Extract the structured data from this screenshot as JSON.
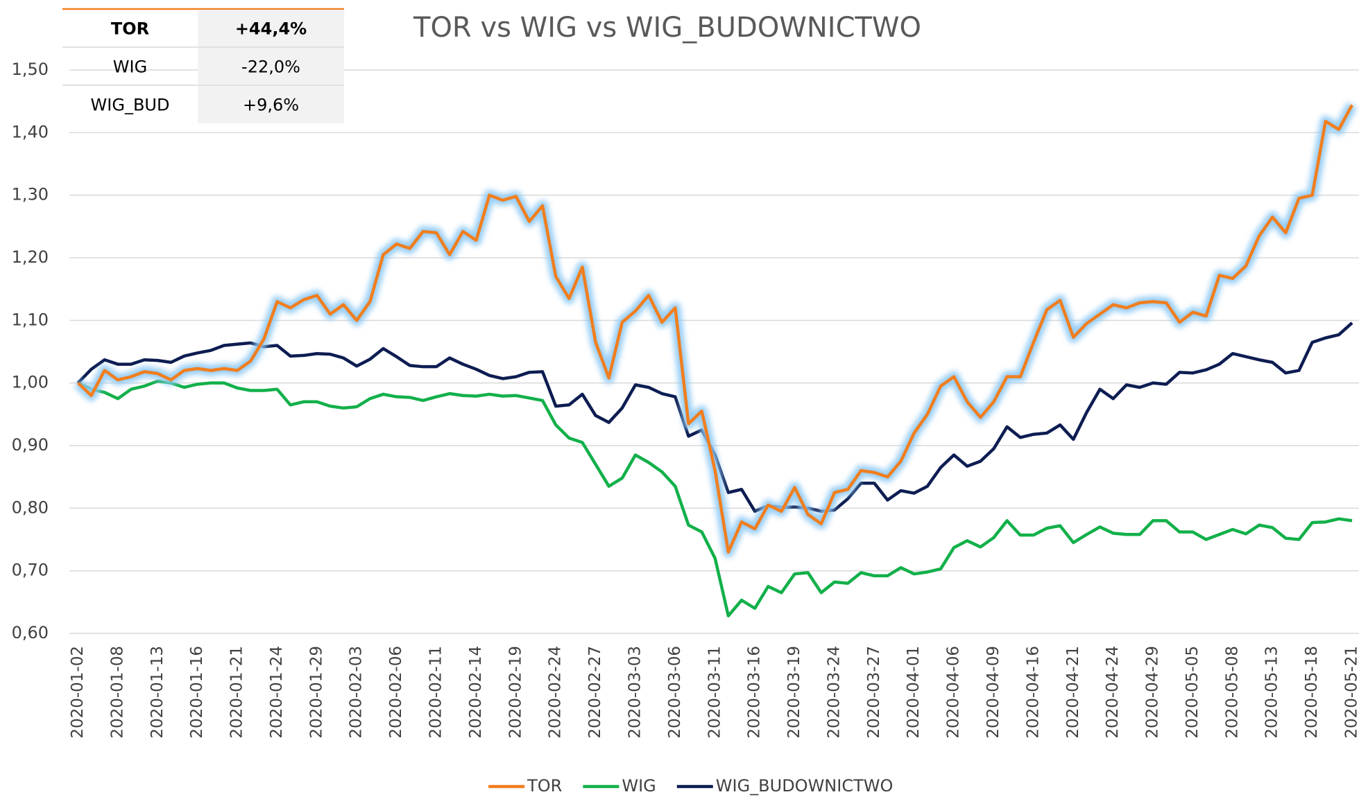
{
  "chart_data": {
    "type": "line",
    "title": "TOR vs WIG vs WIG_BUDOWNICTWO",
    "categories": [
      "2020-01-02",
      null,
      null,
      "2020-01-08",
      null,
      null,
      "2020-01-13",
      null,
      null,
      "2020-01-16",
      null,
      null,
      "2020-01-21",
      null,
      null,
      "2020-01-24",
      null,
      null,
      "2020-01-29",
      null,
      null,
      "2020-02-03",
      null,
      null,
      "2020-02-06",
      null,
      null,
      "2020-02-11",
      null,
      null,
      "2020-02-14",
      null,
      null,
      "2020-02-19",
      null,
      null,
      "2020-02-24",
      null,
      null,
      "2020-02-27",
      null,
      null,
      "2020-03-03",
      null,
      null,
      "2020-03-06",
      null,
      null,
      "2020-03-11",
      null,
      null,
      "2020-03-16",
      null,
      null,
      "2020-03-19",
      null,
      null,
      "2020-03-24",
      null,
      null,
      "2020-03-27",
      null,
      null,
      "2020-04-01",
      null,
      null,
      "2020-04-06",
      null,
      null,
      "2020-04-09",
      null,
      null,
      "2020-04-16",
      null,
      null,
      "2020-04-21",
      null,
      null,
      "2020-04-24",
      null,
      null,
      "2020-04-29",
      null,
      null,
      "2020-05-05",
      null,
      null,
      "2020-05-08",
      null,
      null,
      "2020-05-13",
      null,
      null,
      "2020-05-18",
      null,
      null,
      "2020-05-21"
    ],
    "series": [
      {
        "name": "TOR",
        "color": "#f07e1e",
        "glow": true,
        "values": [
          1.0,
          0.98,
          1.02,
          1.005,
          1.01,
          1.018,
          1.015,
          1.005,
          1.02,
          1.023,
          1.02,
          1.023,
          1.02,
          1.035,
          1.07,
          1.13,
          1.12,
          1.133,
          1.14,
          1.11,
          1.125,
          1.1,
          1.13,
          1.205,
          1.222,
          1.215,
          1.242,
          1.24,
          1.205,
          1.242,
          1.228,
          1.3,
          1.292,
          1.298,
          1.258,
          1.283,
          1.17,
          1.135,
          1.185,
          1.065,
          1.008,
          1.097,
          1.115,
          1.14,
          1.097,
          1.12,
          0.935,
          0.955,
          0.86,
          0.73,
          0.778,
          0.767,
          0.805,
          0.795,
          0.833,
          0.79,
          0.775,
          0.825,
          0.83,
          0.86,
          0.857,
          0.85,
          0.875,
          0.92,
          0.95,
          0.995,
          1.01,
          0.97,
          0.945,
          0.97,
          1.01,
          1.01,
          1.065,
          1.117,
          1.132,
          1.073,
          1.095,
          1.11,
          1.125,
          1.12,
          1.128,
          1.13,
          1.128,
          1.097,
          1.113,
          1.107,
          1.172,
          1.167,
          1.187,
          1.235,
          1.265,
          1.24,
          1.295,
          1.3,
          1.418,
          1.405,
          1.444
        ]
      },
      {
        "name": "WIG",
        "color": "#12b04a",
        "values": [
          1.0,
          0.99,
          0.985,
          0.975,
          0.99,
          0.995,
          1.003,
          1.0,
          0.993,
          0.998,
          1.0,
          1.0,
          0.992,
          0.988,
          0.988,
          0.99,
          0.965,
          0.97,
          0.97,
          0.963,
          0.96,
          0.962,
          0.975,
          0.982,
          0.978,
          0.977,
          0.972,
          0.978,
          0.983,
          0.98,
          0.979,
          0.982,
          0.979,
          0.98,
          0.976,
          0.972,
          0.933,
          0.912,
          0.905,
          0.87,
          0.835,
          0.848,
          0.885,
          0.873,
          0.858,
          0.835,
          0.773,
          0.762,
          0.72,
          0.628,
          0.653,
          0.64,
          0.675,
          0.665,
          0.695,
          0.697,
          0.665,
          0.682,
          0.68,
          0.697,
          0.692,
          0.692,
          0.705,
          0.695,
          0.698,
          0.703,
          0.737,
          0.748,
          0.738,
          0.753,
          0.78,
          0.757,
          0.757,
          0.768,
          0.772,
          0.745,
          0.758,
          0.77,
          0.76,
          0.758,
          0.758,
          0.78,
          0.78,
          0.762,
          0.762,
          0.75,
          0.758,
          0.766,
          0.759,
          0.773,
          0.769,
          0.752,
          0.75,
          0.777,
          0.778,
          0.783,
          0.78
        ]
      },
      {
        "name": "WIG_BUDOWNICTWO",
        "color": "#0d1d52",
        "values": [
          1.0,
          1.022,
          1.037,
          1.03,
          1.03,
          1.037,
          1.036,
          1.033,
          1.043,
          1.048,
          1.052,
          1.06,
          1.062,
          1.064,
          1.058,
          1.06,
          1.043,
          1.044,
          1.047,
          1.046,
          1.04,
          1.027,
          1.038,
          1.055,
          1.042,
          1.028,
          1.026,
          1.026,
          1.04,
          1.03,
          1.022,
          1.012,
          1.007,
          1.01,
          1.017,
          1.018,
          0.963,
          0.965,
          0.982,
          0.948,
          0.937,
          0.96,
          0.997,
          0.993,
          0.983,
          0.978,
          0.915,
          0.925,
          0.885,
          0.825,
          0.83,
          0.795,
          0.804,
          0.801,
          0.802,
          0.8,
          0.795,
          0.797,
          0.815,
          0.84,
          0.84,
          0.813,
          0.828,
          0.824,
          0.835,
          0.865,
          0.885,
          0.867,
          0.875,
          0.895,
          0.93,
          0.913,
          0.918,
          0.92,
          0.933,
          0.91,
          0.953,
          0.99,
          0.975,
          0.997,
          0.993,
          1.0,
          0.998,
          1.017,
          1.016,
          1.021,
          1.03,
          1.047,
          1.042,
          1.037,
          1.033,
          1.016,
          1.02,
          1.065,
          1.072,
          1.077,
          1.096
        ]
      }
    ],
    "ylim": [
      0.6,
      1.5
    ],
    "yticks": [
      {
        "value": 0.6,
        "label": "0,60"
      },
      {
        "value": 0.7,
        "label": "0,70"
      },
      {
        "value": 0.8,
        "label": "0,80"
      },
      {
        "value": 0.9,
        "label": "0,90"
      },
      {
        "value": 1.0,
        "label": "1,00"
      },
      {
        "value": 1.1,
        "label": "1,10"
      },
      {
        "value": 1.2,
        "label": "1,20"
      },
      {
        "value": 1.3,
        "label": "1,30"
      },
      {
        "value": 1.4,
        "label": "1,40"
      },
      {
        "value": 1.5,
        "label": "1,50"
      }
    ],
    "grid": true,
    "legend": "bottom"
  },
  "table": {
    "rows": [
      [
        "TOR",
        "+44,4%"
      ],
      [
        "WIG",
        "-22,0%"
      ],
      [
        "WIG_BUD",
        "+9,6%"
      ]
    ]
  }
}
